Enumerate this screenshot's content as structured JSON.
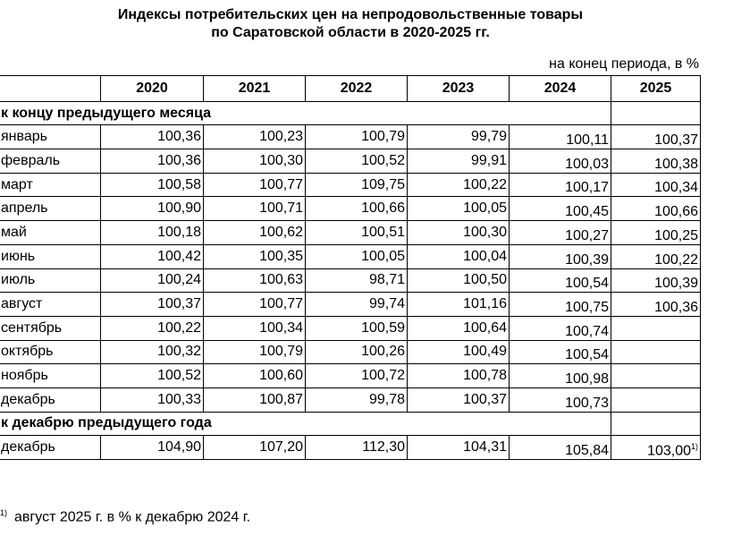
{
  "header": {
    "title_line1": "Индексы потребительских цен на непродовольственные товары",
    "title_line2": "по Саратовской области в 2020-2025 гг.",
    "units": "на конец периода, в %"
  },
  "table": {
    "columns": [
      "2020",
      "2021",
      "2022",
      "2023",
      "2024",
      "2025"
    ],
    "sections": [
      {
        "label": "к концу предыдущего месяца",
        "rows": [
          {
            "label": "январь",
            "values": [
              "100,36",
              "100,23",
              "100,79",
              "99,79",
              "100,11",
              "100,37"
            ]
          },
          {
            "label": "февраль",
            "values": [
              "100,36",
              "100,30",
              "100,52",
              "99,91",
              "100,03",
              "100,38"
            ]
          },
          {
            "label": "март",
            "values": [
              "100,58",
              "100,77",
              "109,75",
              "100,22",
              "100,17",
              "100,34"
            ]
          },
          {
            "label": "апрель",
            "values": [
              "100,90",
              "100,71",
              "100,66",
              "100,05",
              "100,45",
              "100,66"
            ]
          },
          {
            "label": "май",
            "values": [
              "100,18",
              "100,62",
              "100,51",
              "100,30",
              "100,27",
              "100,25"
            ]
          },
          {
            "label": "июнь",
            "values": [
              "100,42",
              "100,35",
              "100,05",
              "100,04",
              "100,39",
              "100,22"
            ]
          },
          {
            "label": "июль",
            "values": [
              "100,24",
              "100,63",
              "98,71",
              "100,50",
              "100,54",
              "100,39"
            ]
          },
          {
            "label": "август",
            "values": [
              "100,37",
              "100,77",
              "99,74",
              "101,16",
              "100,75",
              "100,36"
            ]
          },
          {
            "label": "сентябрь",
            "values": [
              "100,22",
              "100,34",
              "100,59",
              "100,64",
              "100,74"
            ]
          },
          {
            "label": "октябрь",
            "values": [
              "100,32",
              "100,79",
              "100,26",
              "100,49",
              "100,54"
            ]
          },
          {
            "label": "ноябрь",
            "values": [
              "100,52",
              "100,60",
              "100,72",
              "100,78",
              "100,98"
            ]
          },
          {
            "label": "декабрь",
            "values": [
              "100,33",
              "100,87",
              "99,78",
              "100,37",
              "100,73"
            ]
          }
        ]
      },
      {
        "label": "к декабрю предыдущего года",
        "rows": [
          {
            "label": "декабрь",
            "values": [
              "104,90",
              "107,20",
              "112,30",
              "104,31",
              "105,84",
              "103,00"
            ],
            "footnote_on_last": true
          }
        ]
      }
    ]
  },
  "footnote": {
    "mark": "1)",
    "text": "август 2025 г. в % к декабрю 2024 г."
  }
}
